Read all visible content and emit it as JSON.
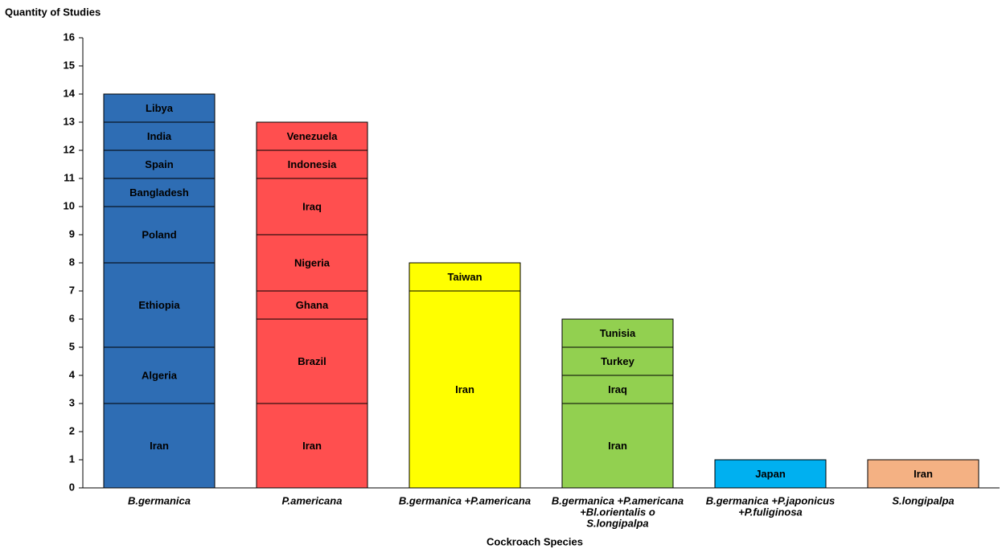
{
  "chart_data": {
    "type": "stacked-bar",
    "y_label": "Quantity of Studies",
    "x_label": "Cockroach Species",
    "ylim": [
      0,
      16
    ],
    "yticks": [
      0,
      1,
      2,
      3,
      4,
      5,
      6,
      7,
      8,
      9,
      10,
      11,
      12,
      13,
      14,
      15,
      16
    ],
    "categories": [
      [
        "B.germanica"
      ],
      [
        "P.americana"
      ],
      [
        "B.germanica +P.americana"
      ],
      [
        "B.germanica +P.americana",
        "+Bl.orientalis  o",
        "S.longipalpa"
      ],
      [
        "B.germanica +P.japonicus",
        "+P.fuliginosa"
      ],
      [
        "S.longipalpa"
      ]
    ],
    "bars": [
      {
        "color": "#2e6db4",
        "segments": [
          {
            "name": "Iran",
            "value": 3
          },
          {
            "name": "Algeria",
            "value": 2
          },
          {
            "name": "Ethiopia",
            "value": 3
          },
          {
            "name": "Poland",
            "value": 2
          },
          {
            "name": "Bangladesh",
            "value": 1
          },
          {
            "name": "Spain",
            "value": 1
          },
          {
            "name": "India",
            "value": 1
          },
          {
            "name": "Libya",
            "value": 1
          }
        ]
      },
      {
        "color": "#ff4f4f",
        "segments": [
          {
            "name": "Iran",
            "value": 3
          },
          {
            "name": "Brazil",
            "value": 3
          },
          {
            "name": "Ghana",
            "value": 1
          },
          {
            "name": "Nigeria",
            "value": 2
          },
          {
            "name": "Iraq",
            "value": 2
          },
          {
            "name": "Indonesia",
            "value": 1
          },
          {
            "name": "Venezuela",
            "value": 1
          }
        ]
      },
      {
        "color": "#ffff00",
        "segments": [
          {
            "name": "Iran",
            "value": 7
          },
          {
            "name": "Taiwan",
            "value": 1
          }
        ]
      },
      {
        "color": "#92d050",
        "segments": [
          {
            "name": "Iran",
            "value": 3
          },
          {
            "name": "Iraq",
            "value": 1
          },
          {
            "name": "Turkey",
            "value": 1
          },
          {
            "name": "Tunisia",
            "value": 1
          }
        ]
      },
      {
        "color": "#00b0f0",
        "segments": [
          {
            "name": "Japan",
            "value": 1
          }
        ]
      },
      {
        "color": "#f4b183",
        "segments": [
          {
            "name": "Iran",
            "value": 1
          }
        ]
      }
    ]
  }
}
